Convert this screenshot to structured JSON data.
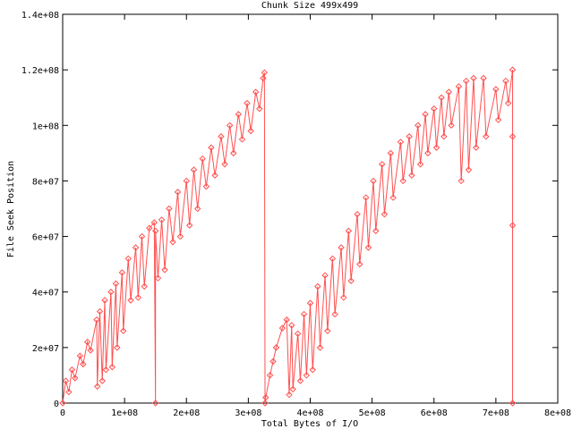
{
  "chart_data": {
    "type": "line",
    "title": "Chunk Size 499x499",
    "xlabel": "Total Bytes of I/O",
    "ylabel": "File Seek Position",
    "xlim": [
      0,
      800000000.0
    ],
    "ylim": [
      0,
      140000000.0
    ],
    "xticks": [
      {
        "v": 0,
        "label": "0"
      },
      {
        "v": 100000000.0,
        "label": "1e+08"
      },
      {
        "v": 200000000.0,
        "label": "2e+08"
      },
      {
        "v": 300000000.0,
        "label": "3e+08"
      },
      {
        "v": 400000000.0,
        "label": "4e+08"
      },
      {
        "v": 500000000.0,
        "label": "5e+08"
      },
      {
        "v": 600000000.0,
        "label": "6e+08"
      },
      {
        "v": 700000000.0,
        "label": "7e+08"
      },
      {
        "v": 800000000.0,
        "label": "8e+08"
      }
    ],
    "yticks": [
      {
        "v": 0,
        "label": "0"
      },
      {
        "v": 20000000.0,
        "label": "2e+07"
      },
      {
        "v": 40000000.0,
        "label": "4e+07"
      },
      {
        "v": 60000000.0,
        "label": "6e+07"
      },
      {
        "v": 80000000.0,
        "label": "8e+07"
      },
      {
        "v": 100000000.0,
        "label": "1e+08"
      },
      {
        "v": 120000000.0,
        "label": "1.2e+08"
      },
      {
        "v": 140000000.0,
        "label": "1.4e+08"
      }
    ],
    "grid": false,
    "line_color": "#ff5050",
    "marker": "diamond",
    "points": [
      [
        0,
        0
      ],
      [
        5000000.0,
        8000000.0
      ],
      [
        10000000.0,
        4000000.0
      ],
      [
        15000000.0,
        12000000.0
      ],
      [
        20000000.0,
        9000000.0
      ],
      [
        28000000.0,
        17000000.0
      ],
      [
        33000000.0,
        14000000.0
      ],
      [
        40000000.0,
        22000000.0
      ],
      [
        45000000.0,
        19000000.0
      ],
      [
        55000000.0,
        30000000.0
      ],
      [
        56000000.0,
        6000000.0
      ],
      [
        60000000.0,
        33000000.0
      ],
      [
        64000000.0,
        8000000.0
      ],
      [
        68000000.0,
        37000000.0
      ],
      [
        70000000.0,
        12000000.0
      ],
      [
        78000000.0,
        40000000.0
      ],
      [
        80000000.0,
        13000000.0
      ],
      [
        86000000.0,
        43000000.0
      ],
      [
        88000000.0,
        20000000.0
      ],
      [
        96000000.0,
        47000000.0
      ],
      [
        98000000.0,
        26000000.0
      ],
      [
        106000000.0,
        52000000.0
      ],
      [
        110000000.0,
        37000000.0
      ],
      [
        118000000.0,
        56000000.0
      ],
      [
        122000000.0,
        38000000.0
      ],
      [
        128000000.0,
        60000000.0
      ],
      [
        132000000.0,
        42000000.0
      ],
      [
        140000000.0,
        63000000.0
      ],
      [
        148000000.0,
        65000000.0
      ],
      [
        150000000.0,
        0
      ],
      [
        150000000.0,
        62000000.0
      ],
      [
        154000000.0,
        45000000.0
      ],
      [
        160000000.0,
        66000000.0
      ],
      [
        165000000.0,
        48000000.0
      ],
      [
        172000000.0,
        70000000.0
      ],
      [
        178000000.0,
        58000000.0
      ],
      [
        186000000.0,
        76000000.0
      ],
      [
        190000000.0,
        60000000.0
      ],
      [
        200000000.0,
        80000000.0
      ],
      [
        205000000.0,
        64000000.0
      ],
      [
        212000000.0,
        84000000.0
      ],
      [
        218000000.0,
        70000000.0
      ],
      [
        226000000.0,
        88000000.0
      ],
      [
        232000000.0,
        78000000.0
      ],
      [
        240000000.0,
        92000000.0
      ],
      [
        246000000.0,
        82000000.0
      ],
      [
        256000000.0,
        96000000.0
      ],
      [
        262000000.0,
        86000000.0
      ],
      [
        270000000.0,
        100000000.0
      ],
      [
        276000000.0,
        90000000.0
      ],
      [
        284000000.0,
        104000000.0
      ],
      [
        290000000.0,
        95000000.0
      ],
      [
        298000000.0,
        108000000.0
      ],
      [
        304000000.0,
        98000000.0
      ],
      [
        312000000.0,
        112000000.0
      ],
      [
        318000000.0,
        106000000.0
      ],
      [
        324000000.0,
        117000000.0
      ],
      [
        326000000.0,
        119000000.0
      ],
      [
        327000000.0,
        0
      ],
      [
        328000000.0,
        2000000.0
      ],
      [
        335000000.0,
        10000000.0
      ],
      [
        340000000.0,
        15000000.0
      ],
      [
        345000000.0,
        20000000.0
      ],
      [
        355000000.0,
        27000000.0
      ],
      [
        362000000.0,
        30000000.0
      ],
      [
        366000000.0,
        3000000.0
      ],
      [
        370000000.0,
        28000000.0
      ],
      [
        372000000.0,
        5000000.0
      ],
      [
        380000000.0,
        25000000.0
      ],
      [
        384000000.0,
        8000000.0
      ],
      [
        390000000.0,
        32000000.0
      ],
      [
        394000000.0,
        10000000.0
      ],
      [
        400000000.0,
        36000000.0
      ],
      [
        404000000.0,
        12000000.0
      ],
      [
        412000000.0,
        42000000.0
      ],
      [
        416000000.0,
        20000000.0
      ],
      [
        424000000.0,
        46000000.0
      ],
      [
        428000000.0,
        26000000.0
      ],
      [
        436000000.0,
        52000000.0
      ],
      [
        440000000.0,
        32000000.0
      ],
      [
        450000000.0,
        56000000.0
      ],
      [
        454000000.0,
        38000000.0
      ],
      [
        462000000.0,
        62000000.0
      ],
      [
        466000000.0,
        44000000.0
      ],
      [
        476000000.0,
        68000000.0
      ],
      [
        480000000.0,
        50000000.0
      ],
      [
        490000000.0,
        74000000.0
      ],
      [
        494000000.0,
        56000000.0
      ],
      [
        502000000.0,
        80000000.0
      ],
      [
        506000000.0,
        62000000.0
      ],
      [
        516000000.0,
        86000000.0
      ],
      [
        520000000.0,
        68000000.0
      ],
      [
        530000000.0,
        90000000.0
      ],
      [
        534000000.0,
        74000000.0
      ],
      [
        546000000.0,
        94000000.0
      ],
      [
        550000000.0,
        80000000.0
      ],
      [
        560000000.0,
        96000000.0
      ],
      [
        564000000.0,
        82000000.0
      ],
      [
        574000000.0,
        100000000.0
      ],
      [
        578000000.0,
        86000000.0
      ],
      [
        586000000.0,
        104000000.0
      ],
      [
        590000000.0,
        90000000.0
      ],
      [
        600000000.0,
        106000000.0
      ],
      [
        604000000.0,
        92000000.0
      ],
      [
        612000000.0,
        110000000.0
      ],
      [
        616000000.0,
        96000000.0
      ],
      [
        624000000.0,
        112000000.0
      ],
      [
        628000000.0,
        100000000.0
      ],
      [
        640000000.0,
        114000000.0
      ],
      [
        644000000.0,
        80000000.0
      ],
      [
        652000000.0,
        116000000.0
      ],
      [
        656000000.0,
        84000000.0
      ],
      [
        664000000.0,
        117000000.0
      ],
      [
        668000000.0,
        92000000.0
      ],
      [
        680000000.0,
        117000000.0
      ],
      [
        684000000.0,
        96000000.0
      ],
      [
        700000000.0,
        113000000.0
      ],
      [
        704000000.0,
        102000000.0
      ],
      [
        716000000.0,
        116000000.0
      ],
      [
        720000000.0,
        108000000.0
      ],
      [
        727000000.0,
        120000000.0
      ],
      [
        727000000.0,
        96000000.0
      ],
      [
        727000000.0,
        64000000.0
      ],
      [
        727000000.0,
        0
      ]
    ]
  }
}
